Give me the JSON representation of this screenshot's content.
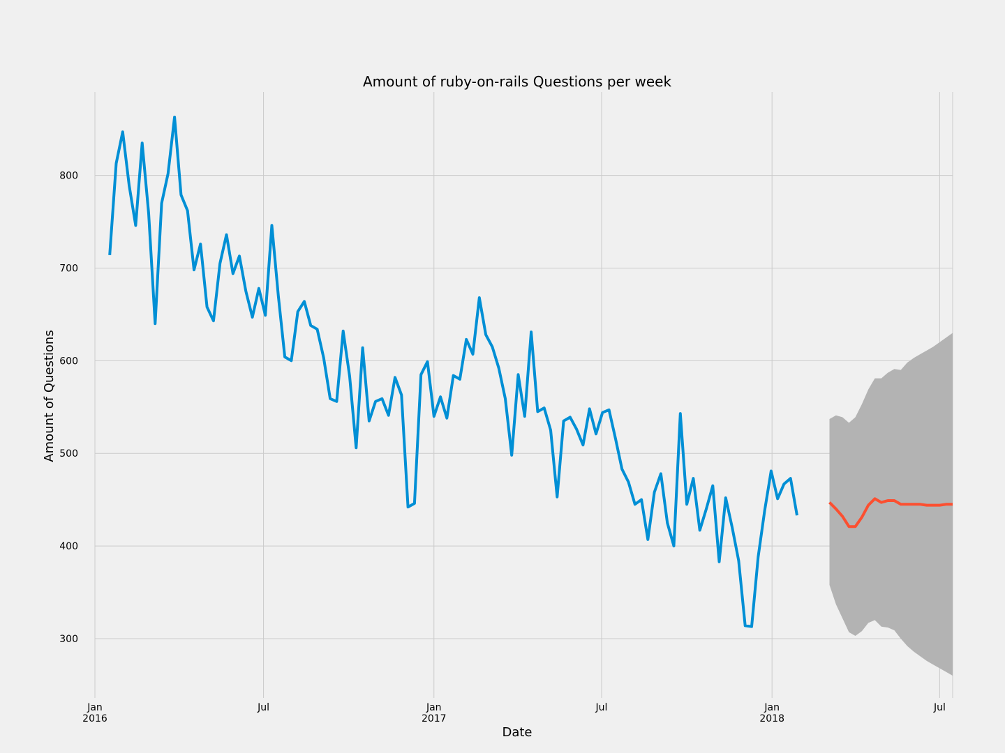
{
  "chart_data": {
    "type": "line",
    "title": "Amount of ruby-on-rails Questions per week",
    "xlabel": "Date",
    "ylabel": "Amount of Questions",
    "xlim": [
      "2016-01-01",
      "2018-07-15"
    ],
    "ylim": [
      236,
      890
    ],
    "grid": true,
    "colors": {
      "observed": "#008fd5",
      "forecast": "#fc4f30",
      "band": "#b3b3b3"
    },
    "x_ticks": [
      {
        "date": "2016-01-01",
        "label": "Jan",
        "sub": "2016"
      },
      {
        "date": "2016-07-01",
        "label": "Jul",
        "sub": ""
      },
      {
        "date": "2017-01-01",
        "label": "Jan",
        "sub": "2017"
      },
      {
        "date": "2017-07-01",
        "label": "Jul",
        "sub": ""
      },
      {
        "date": "2018-01-01",
        "label": "Jan",
        "sub": "2018"
      },
      {
        "date": "2018-07-01",
        "label": "Jul",
        "sub": ""
      }
    ],
    "y_ticks": [
      300,
      400,
      500,
      600,
      700,
      800
    ],
    "series": [
      {
        "type": "line",
        "start_date": "2016-01-17",
        "values": [
          714,
          813,
          847,
          789,
          746,
          835,
          759,
          640,
          770,
          802,
          863,
          779,
          762,
          698,
          726,
          658,
          643,
          705,
          736,
          694,
          713,
          675,
          647,
          678,
          649,
          746,
          670,
          604,
          600,
          653,
          664,
          638,
          634,
          603,
          559,
          556,
          632,
          583,
          506,
          614,
          535,
          556,
          559,
          541,
          582,
          563,
          442,
          446,
          585,
          599,
          540,
          561,
          538,
          584,
          580,
          623,
          607,
          668,
          628,
          615,
          592,
          559,
          498,
          585,
          540,
          631,
          545,
          549,
          525,
          453,
          535,
          539,
          526,
          509,
          548,
          521,
          544,
          547,
          516,
          483,
          469,
          445,
          450,
          407,
          458,
          478,
          425,
          400,
          543,
          445,
          473,
          417,
          440,
          465,
          383,
          452,
          420,
          384,
          314,
          313,
          388,
          438,
          481,
          451,
          467,
          473,
          433
        ]
      },
      {
        "type": "line",
        "start_date": "2018-03-04",
        "values": [
          447,
          440,
          432,
          421,
          421,
          431,
          444,
          451,
          447,
          449,
          449,
          445,
          445,
          445,
          445,
          444,
          444,
          444,
          445,
          445
        ]
      }
    ],
    "confidence_interval": {
      "start_date": "2018-03-04",
      "lower": [
        358,
        337,
        322,
        307,
        303,
        308,
        317,
        320,
        313,
        312,
        309,
        300,
        292,
        286,
        281,
        276,
        272,
        268,
        264,
        260
      ],
      "upper": [
        537,
        541,
        539,
        533,
        539,
        553,
        569,
        581,
        581,
        587,
        591,
        590,
        598,
        603,
        607,
        611,
        615,
        620,
        625,
        630
      ]
    }
  }
}
